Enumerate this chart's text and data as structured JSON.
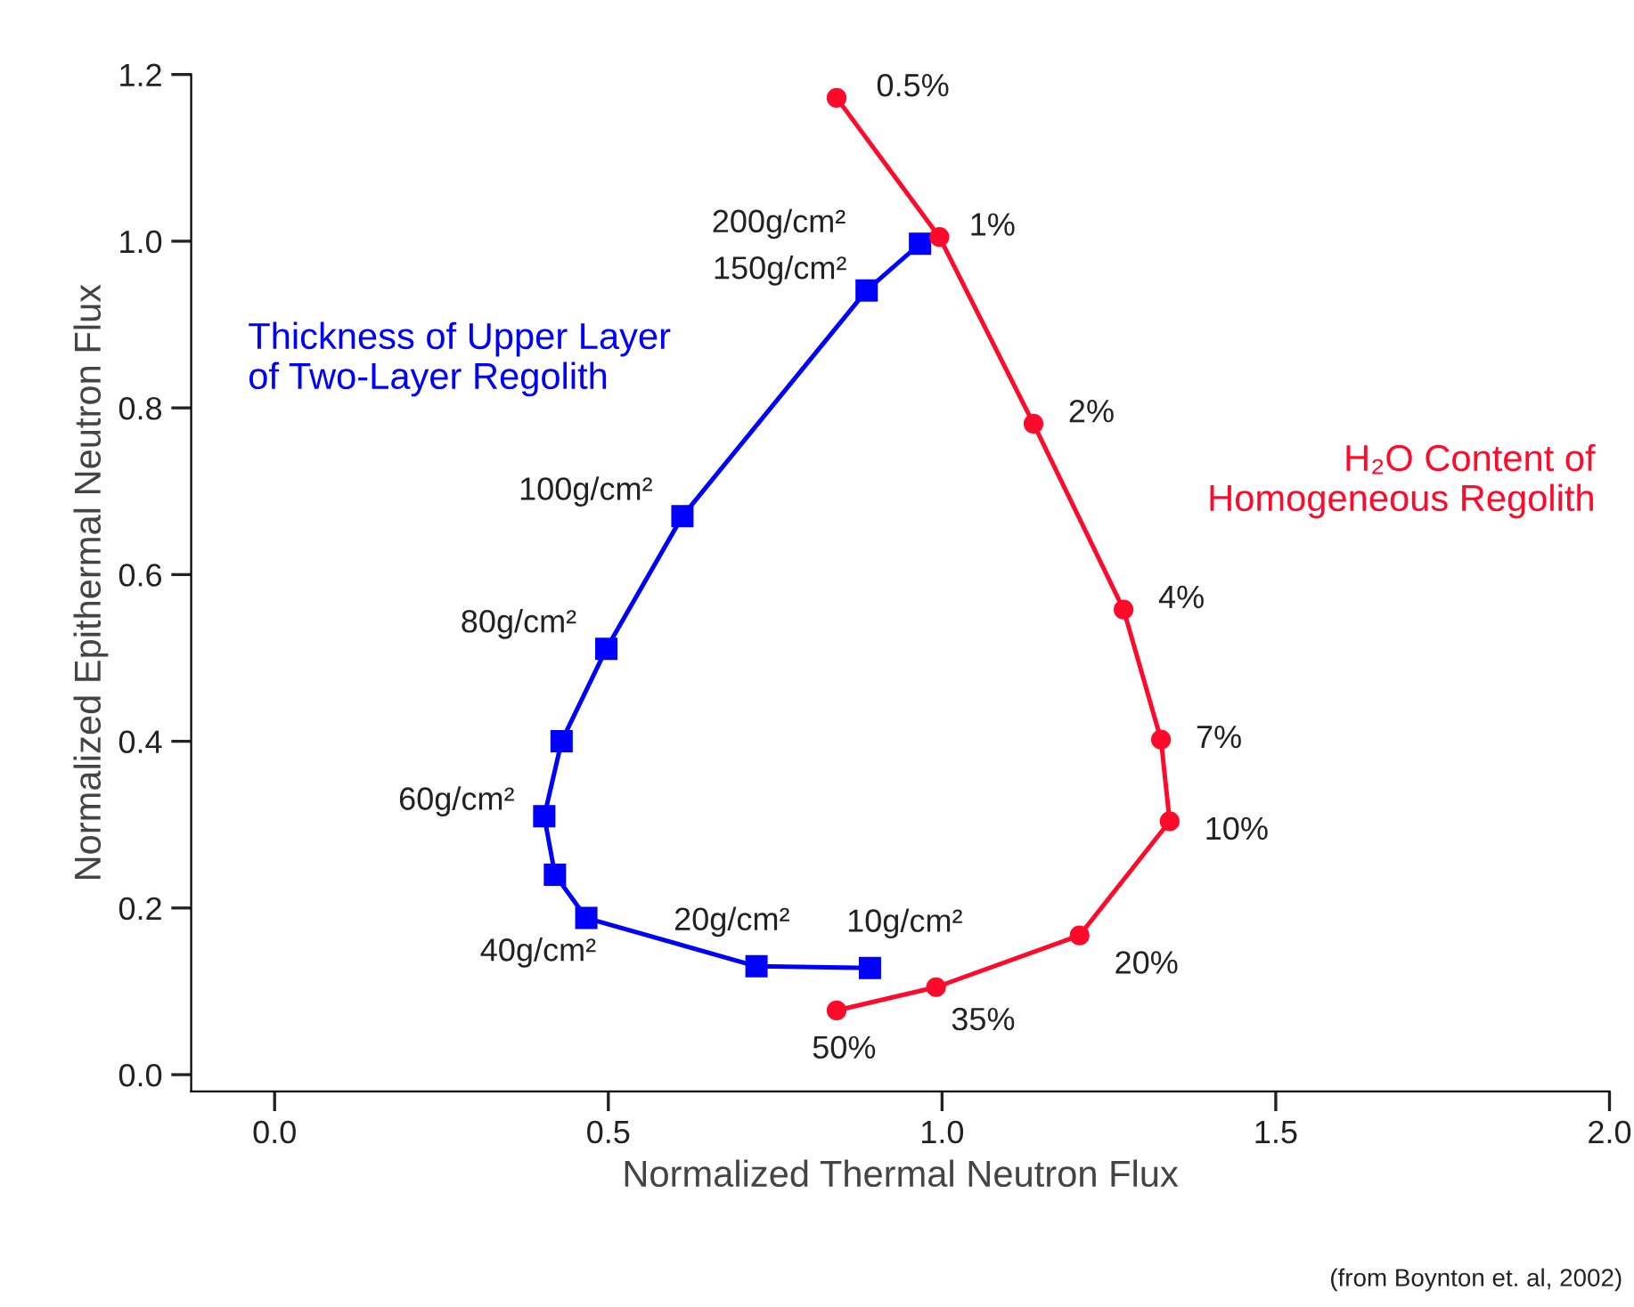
{
  "chart_data": {
    "type": "line",
    "xlabel": "Normalized Thermal Neutron Flux",
    "ylabel": "Normalized Epithermal Neutron Flux",
    "xlim": [
      -0.125,
      2.0
    ],
    "ylim": [
      -0.02,
      1.2
    ],
    "xticks": [
      {
        "value": 0,
        "label": "0.0"
      },
      0.5,
      {
        "value": 1,
        "label": "1.0"
      },
      1.5,
      {
        "value": 2,
        "label": "2.0"
      }
    ],
    "yticks": [
      {
        "value": 0,
        "label": "0.0"
      },
      0.2,
      0.4,
      0.6,
      0.8,
      {
        "value": 1,
        "label": "1.0"
      },
      1.2
    ],
    "grid": false,
    "legend": false,
    "series": [
      {
        "name": "Thickness of Upper Layer\nof Two-Layer Regolith",
        "color": "#0000ff",
        "marker": "square",
        "x": [
          0.967,
          0.887,
          0.611,
          0.497,
          0.43,
          0.404,
          0.42,
          0.467,
          0.722,
          0.892
        ],
        "values": [
          0.997,
          0.941,
          0.67,
          0.511,
          0.4,
          0.31,
          0.24,
          0.188,
          0.13,
          0.128
        ]
      },
      {
        "name": "H₂O Content of\nHomogeneous Regolith",
        "color": "#ff0a2a",
        "marker": "circle",
        "x": [
          0.842,
          0.996,
          1.137,
          1.272,
          1.328,
          1.341,
          1.206,
          0.991,
          0.842
        ],
        "values": [
          1.172,
          1.005,
          0.781,
          0.558,
          0.402,
          0.304,
          0.167,
          0.105,
          0.077
        ]
      }
    ],
    "annotations": [
      {
        "text": "200g/cm²",
        "x": 0.967,
        "y": 0.997
      },
      {
        "text": "150g/cm²",
        "x": 0.887,
        "y": 0.941
      },
      {
        "text": "100g/cm²",
        "x": 0.611,
        "y": 0.67
      },
      {
        "text": "80g/cm²",
        "x": 0.497,
        "y": 0.511
      },
      {
        "text": "60g/cm²",
        "x": 0.404,
        "y": 0.31
      },
      {
        "text": "40g/cm²",
        "x": 0.467,
        "y": 0.188
      },
      {
        "text": "20g/cm²",
        "x": 0.722,
        "y": 0.13
      },
      {
        "text": "10g/cm²",
        "x": 0.892,
        "y": 0.128
      },
      {
        "text": "0.5%",
        "x": 0.842,
        "y": 1.172
      },
      {
        "text": "1%",
        "x": 0.996,
        "y": 1.005
      },
      {
        "text": "2%",
        "x": 1.137,
        "y": 0.781
      },
      {
        "text": "4%",
        "x": 1.272,
        "y": 0.558
      },
      {
        "text": "7%",
        "x": 1.328,
        "y": 0.402
      },
      {
        "text": "10%",
        "x": 1.341,
        "y": 0.304
      },
      {
        "text": "20%",
        "x": 1.206,
        "y": 0.167
      },
      {
        "text": "35%",
        "x": 0.991,
        "y": 0.105
      },
      {
        "text": "50%",
        "x": 0.842,
        "y": 0.077
      },
      "(from Boynton et. al, 2002)"
    ]
  }
}
